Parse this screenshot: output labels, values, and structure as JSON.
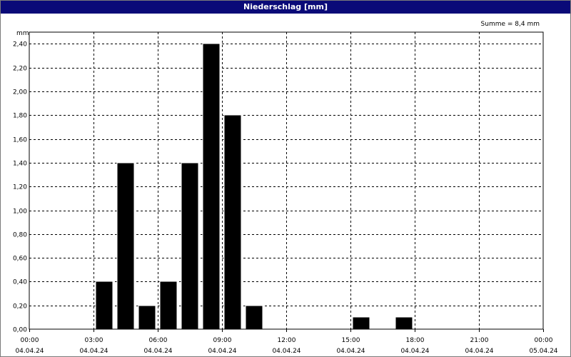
{
  "chart_data": {
    "type": "bar",
    "title": "Niederschlag [mm]",
    "ylabel": "mm",
    "annotation": "Summe = 8,4 mm",
    "ylim": [
      0,
      2.6
    ],
    "y_ticks": [
      "0,00",
      "0,20",
      "0,40",
      "0,60",
      "0,80",
      "1,00",
      "1,20",
      "1,40",
      "1,60",
      "1,80",
      "2,00",
      "2,20",
      "2,40"
    ],
    "x_range_hours": [
      0,
      24
    ],
    "x_ticks": [
      {
        "time": "00:00",
        "date": "04.04.24"
      },
      {
        "time": "03:00",
        "date": "04.04.24"
      },
      {
        "time": "06:00",
        "date": "04.04.24"
      },
      {
        "time": "09:00",
        "date": "04.04.24"
      },
      {
        "time": "12:00",
        "date": "04.04.24"
      },
      {
        "time": "15:00",
        "date": "04.04.24"
      },
      {
        "time": "18:00",
        "date": "04.04.24"
      },
      {
        "time": "21:00",
        "date": "04.04.24"
      },
      {
        "time": "00:00",
        "date": "05.04.24"
      }
    ],
    "series": [
      {
        "values": [
          {
            "hour": 3,
            "value": 0.4
          },
          {
            "hour": 4,
            "value": 1.4
          },
          {
            "hour": 5,
            "value": 0.2
          },
          {
            "hour": 6,
            "value": 0.4
          },
          {
            "hour": 7,
            "value": 1.4
          },
          {
            "hour": 8,
            "value": 2.4
          },
          {
            "hour": 9,
            "value": 1.8
          },
          {
            "hour": 10,
            "value": 0.2
          },
          {
            "hour": 15,
            "value": 0.1
          },
          {
            "hour": 17,
            "value": 0.1
          }
        ]
      }
    ],
    "grid": true,
    "bar_color": "#000000",
    "title_bar_color": "#0a0a78"
  }
}
